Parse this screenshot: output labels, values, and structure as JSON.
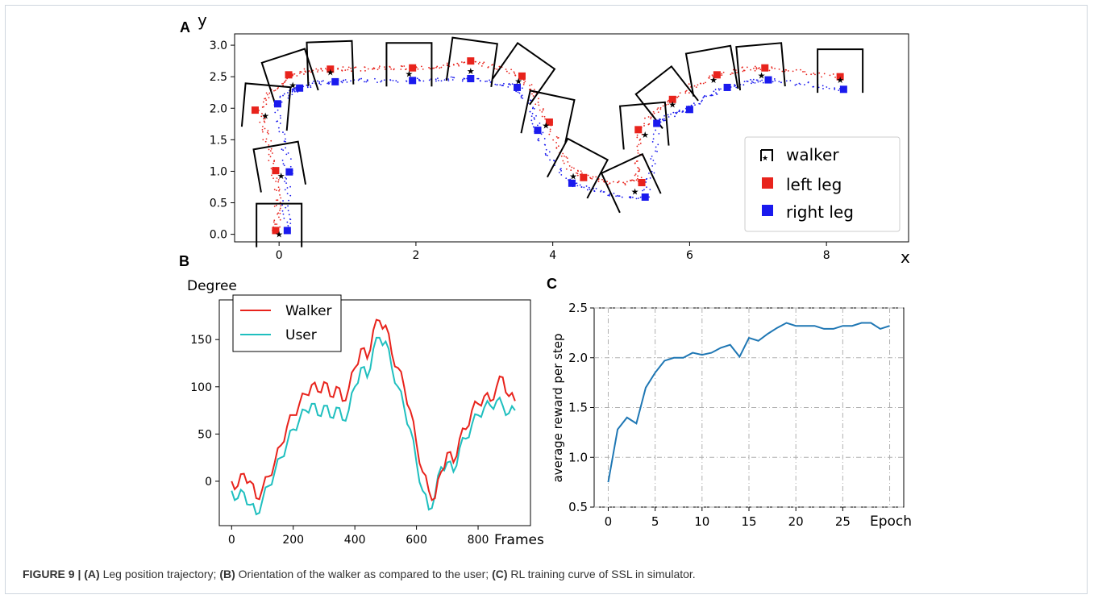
{
  "figure": {
    "caption_fig": "FIGURE 9 |",
    "caption_a_tag": "(A)",
    "caption_a_text": " Leg position trajectory; ",
    "caption_b_tag": "(B)",
    "caption_b_text": " Orientation of the walker as compared to the user; ",
    "caption_c_tag": "(C)",
    "caption_c_text": " RL training curve of SSL in simulator."
  },
  "colors": {
    "left": "#e8231c",
    "right": "#1a1aee",
    "walker_b": "#e8231c",
    "user_b": "#1fbfbf",
    "reward": "#1f77b4"
  },
  "chart_data": [
    {
      "panel": "A",
      "type": "scatter",
      "xlabel": "x",
      "ylabel": "y",
      "xlim": [
        -0.65,
        9.2
      ],
      "ylim": [
        -0.12,
        3.18
      ],
      "xticks": [
        0,
        2,
        4,
        6,
        8
      ],
      "yticks": [
        0.0,
        0.5,
        1.0,
        1.5,
        2.0,
        2.5,
        3.0
      ],
      "legend": {
        "position": "lower-right",
        "entries": [
          "walker",
          "left leg",
          "right leg"
        ]
      },
      "walker": [
        {
          "x": 0.0,
          "y": 0.0,
          "angle": 0
        },
        {
          "x": 0.03,
          "y": 0.93,
          "angle": -10
        },
        {
          "x": -0.2,
          "y": 1.88,
          "angle": 5
        },
        {
          "x": 0.2,
          "y": 2.37,
          "angle": -18
        },
        {
          "x": 0.75,
          "y": 2.57,
          "angle": -2
        },
        {
          "x": 1.9,
          "y": 2.55,
          "angle": 0
        },
        {
          "x": 2.8,
          "y": 2.59,
          "angle": 8
        },
        {
          "x": 3.5,
          "y": 2.43,
          "angle": 35
        },
        {
          "x": 3.9,
          "y": 1.73,
          "angle": 12
        },
        {
          "x": 4.3,
          "y": 0.92,
          "angle": 28
        },
        {
          "x": 5.2,
          "y": 0.68,
          "angle": -25
        },
        {
          "x": 5.35,
          "y": 1.58,
          "angle": -5
        },
        {
          "x": 5.75,
          "y": 2.06,
          "angle": -38
        },
        {
          "x": 6.35,
          "y": 2.45,
          "angle": -10
        },
        {
          "x": 7.05,
          "y": 2.52,
          "angle": -5
        },
        {
          "x": 8.2,
          "y": 2.45,
          "angle": 0
        }
      ],
      "left_leg": [
        {
          "x": -0.05,
          "y": 0.06
        },
        {
          "x": -0.05,
          "y": 1.01
        },
        {
          "x": -0.35,
          "y": 1.97
        },
        {
          "x": 0.14,
          "y": 2.53
        },
        {
          "x": 0.75,
          "y": 2.62
        },
        {
          "x": 1.95,
          "y": 2.64
        },
        {
          "x": 2.8,
          "y": 2.75
        },
        {
          "x": 3.55,
          "y": 2.51
        },
        {
          "x": 3.95,
          "y": 1.78
        },
        {
          "x": 4.45,
          "y": 0.9
        },
        {
          "x": 5.3,
          "y": 0.82
        },
        {
          "x": 5.25,
          "y": 1.66
        },
        {
          "x": 5.75,
          "y": 2.14
        },
        {
          "x": 6.4,
          "y": 2.53
        },
        {
          "x": 7.1,
          "y": 2.64
        },
        {
          "x": 8.2,
          "y": 2.5
        }
      ],
      "right_leg": [
        {
          "x": 0.12,
          "y": 0.06
        },
        {
          "x": 0.15,
          "y": 0.99
        },
        {
          "x": -0.02,
          "y": 2.07
        },
        {
          "x": 0.3,
          "y": 2.32
        },
        {
          "x": 0.82,
          "y": 2.42
        },
        {
          "x": 1.95,
          "y": 2.44
        },
        {
          "x": 2.8,
          "y": 2.47
        },
        {
          "x": 3.48,
          "y": 2.33
        },
        {
          "x": 3.78,
          "y": 1.65
        },
        {
          "x": 4.28,
          "y": 0.81
        },
        {
          "x": 5.35,
          "y": 0.59
        },
        {
          "x": 5.52,
          "y": 1.76
        },
        {
          "x": 6.0,
          "y": 1.98
        },
        {
          "x": 6.55,
          "y": 2.33
        },
        {
          "x": 7.15,
          "y": 2.45
        },
        {
          "x": 8.25,
          "y": 2.3
        }
      ],
      "left_path": [
        [
          -0.05,
          0.05
        ],
        [
          0.0,
          0.4
        ],
        [
          -0.05,
          0.8
        ],
        [
          -0.1,
          1.2
        ],
        [
          -0.2,
          1.6
        ],
        [
          -0.3,
          1.95
        ],
        [
          -0.1,
          2.25
        ],
        [
          0.15,
          2.52
        ],
        [
          0.45,
          2.6
        ],
        [
          0.8,
          2.63
        ],
        [
          1.2,
          2.62
        ],
        [
          1.6,
          2.64
        ],
        [
          2.0,
          2.64
        ],
        [
          2.4,
          2.68
        ],
        [
          2.8,
          2.72
        ],
        [
          3.2,
          2.66
        ],
        [
          3.55,
          2.5
        ],
        [
          3.75,
          2.2
        ],
        [
          3.95,
          1.78
        ],
        [
          4.1,
          1.3
        ],
        [
          4.3,
          1.0
        ],
        [
          4.6,
          0.88
        ],
        [
          4.95,
          0.8
        ],
        [
          5.25,
          0.85
        ],
        [
          5.25,
          1.2
        ],
        [
          5.28,
          1.66
        ],
        [
          5.5,
          1.95
        ],
        [
          5.75,
          2.14
        ],
        [
          6.05,
          2.35
        ],
        [
          6.4,
          2.52
        ],
        [
          6.8,
          2.62
        ],
        [
          7.1,
          2.64
        ],
        [
          7.6,
          2.58
        ],
        [
          8.2,
          2.5
        ]
      ],
      "right_path": [
        [
          0.12,
          0.06
        ],
        [
          0.1,
          0.45
        ],
        [
          0.15,
          0.99
        ],
        [
          0.05,
          1.5
        ],
        [
          -0.02,
          2.07
        ],
        [
          0.15,
          2.25
        ],
        [
          0.3,
          2.32
        ],
        [
          0.55,
          2.4
        ],
        [
          0.85,
          2.42
        ],
        [
          1.3,
          2.44
        ],
        [
          1.95,
          2.44
        ],
        [
          2.4,
          2.46
        ],
        [
          2.8,
          2.47
        ],
        [
          3.2,
          2.4
        ],
        [
          3.48,
          2.33
        ],
        [
          3.7,
          2.0
        ],
        [
          3.78,
          1.65
        ],
        [
          3.95,
          1.2
        ],
        [
          4.28,
          0.81
        ],
        [
          4.6,
          0.7
        ],
        [
          5.0,
          0.6
        ],
        [
          5.35,
          0.59
        ],
        [
          5.45,
          1.1
        ],
        [
          5.52,
          1.76
        ],
        [
          5.75,
          1.9
        ],
        [
          6.0,
          1.98
        ],
        [
          6.3,
          2.2
        ],
        [
          6.55,
          2.33
        ],
        [
          6.9,
          2.42
        ],
        [
          7.15,
          2.45
        ],
        [
          7.7,
          2.38
        ],
        [
          8.25,
          2.3
        ]
      ]
    },
    {
      "panel": "B",
      "type": "line",
      "ylabel": "Degree",
      "xlabel": "Frames",
      "xlim": [
        -40,
        970
      ],
      "ylim": [
        -47,
        192
      ],
      "xticks": [
        0,
        200,
        400,
        600,
        800
      ],
      "yticks": [
        0,
        50,
        100,
        150
      ],
      "legend": {
        "position": "top-left",
        "entries": [
          "Walker",
          "User"
        ]
      },
      "x": [
        0,
        20,
        40,
        60,
        80,
        100,
        120,
        140,
        160,
        180,
        200,
        220,
        240,
        260,
        280,
        300,
        320,
        340,
        360,
        380,
        400,
        420,
        440,
        460,
        480,
        500,
        520,
        540,
        560,
        580,
        600,
        620,
        640,
        660,
        680,
        700,
        720,
        740,
        760,
        780,
        800,
        820,
        840,
        860,
        880,
        900,
        920
      ],
      "series": [
        {
          "name": "Walker",
          "values": [
            0,
            -5,
            8,
            0,
            -18,
            -8,
            5,
            20,
            38,
            58,
            70,
            82,
            92,
            102,
            95,
            105,
            90,
            100,
            85,
            98,
            120,
            140,
            130,
            160,
            170,
            165,
            135,
            120,
            100,
            75,
            40,
            10,
            -10,
            -18,
            10,
            30,
            20,
            45,
            55,
            75,
            82,
            90,
            85,
            100,
            110,
            90,
            85
          ]
        },
        {
          "name": "User",
          "values": [
            -10,
            -18,
            -12,
            -25,
            -35,
            -20,
            -5,
            10,
            25,
            40,
            55,
            65,
            75,
            82,
            70,
            80,
            68,
            78,
            65,
            75,
            100,
            120,
            110,
            140,
            152,
            148,
            120,
            100,
            78,
            55,
            20,
            -10,
            -30,
            -15,
            15,
            20,
            10,
            35,
            45,
            60,
            70,
            78,
            80,
            85,
            80,
            72,
            75
          ]
        }
      ]
    },
    {
      "panel": "C",
      "type": "line",
      "ylabel": "average reward per step",
      "xlabel": "Epoch",
      "xlim": [
        -1.5,
        31.5
      ],
      "ylim": [
        0.5,
        2.5
      ],
      "xticks": [
        0,
        5,
        10,
        15,
        20,
        25
      ],
      "yticks": [
        0.5,
        1.0,
        1.5,
        2.0,
        2.5
      ],
      "grid": true,
      "x": [
        0,
        1,
        2,
        3,
        4,
        5,
        6,
        7,
        8,
        9,
        10,
        11,
        12,
        13,
        14,
        15,
        16,
        17,
        18,
        19,
        20,
        21,
        22,
        23,
        24,
        25,
        26,
        27,
        28,
        29,
        30
      ],
      "series": [
        {
          "name": "",
          "values": [
            0.75,
            1.28,
            1.4,
            1.34,
            1.7,
            1.85,
            1.97,
            2.0,
            2.0,
            2.05,
            2.03,
            2.05,
            2.1,
            2.13,
            2.01,
            2.2,
            2.17,
            2.24,
            2.3,
            2.35,
            2.32,
            2.32,
            2.32,
            2.29,
            2.29,
            2.32,
            2.32,
            2.35,
            2.35,
            2.29,
            2.32
          ]
        }
      ]
    }
  ]
}
